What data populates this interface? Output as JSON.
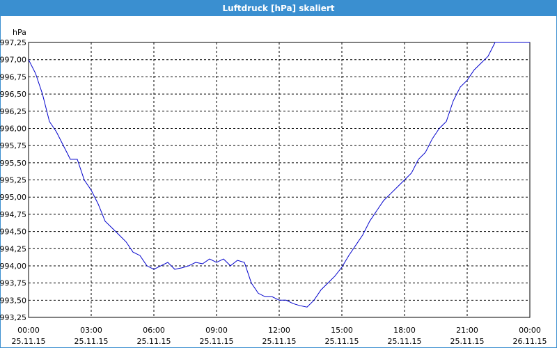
{
  "window": {
    "title": "Luftdruck [hPa] skaliert"
  },
  "chart_data": {
    "type": "line",
    "title": "Luftdruck [hPa] skaliert",
    "ylabel": "hPa",
    "xlabel": "",
    "grid": true,
    "colors": {
      "line": "#0000cc",
      "grid": "#000000",
      "background": "#ffffff",
      "title_bar": "#3a8fd0"
    },
    "ylim": [
      993.25,
      997.25
    ],
    "y_ticks": [
      "993,25",
      "993,50",
      "993,75",
      "994,00",
      "994,25",
      "994,50",
      "994,75",
      "995,00",
      "995,25",
      "995,50",
      "995,75",
      "996,00",
      "996,25",
      "996,50",
      "996,75",
      "997,00",
      "997,25"
    ],
    "xlim": [
      "2015-11-25 00:00",
      "2015-11-26 00:00"
    ],
    "x_ticks": [
      {
        "time": "00:00",
        "date": "25.11.15"
      },
      {
        "time": "03:00",
        "date": "25.11.15"
      },
      {
        "time": "06:00",
        "date": "25.11.15"
      },
      {
        "time": "09:00",
        "date": "25.11.15"
      },
      {
        "time": "12:00",
        "date": "25.11.15"
      },
      {
        "time": "15:00",
        "date": "25.11.15"
      },
      {
        "time": "18:00",
        "date": "25.11.15"
      },
      {
        "time": "21:00",
        "date": "25.11.15"
      },
      {
        "time": "00:00",
        "date": "26.11.15"
      }
    ],
    "series": [
      {
        "x": [
          "00:00",
          "00:20",
          "00:40",
          "01:00",
          "01:20",
          "01:40",
          "02:00",
          "02:20",
          "02:40",
          "03:00",
          "03:20",
          "03:40",
          "04:00",
          "04:20",
          "04:40",
          "05:00",
          "05:20",
          "05:40",
          "06:00",
          "06:20",
          "06:40",
          "07:00",
          "07:20",
          "07:40",
          "08:00",
          "08:20",
          "08:40",
          "09:00",
          "09:20",
          "09:40",
          "10:00",
          "10:20",
          "10:40",
          "11:00",
          "11:20",
          "11:40",
          "12:00",
          "12:20",
          "12:40",
          "13:00",
          "13:20",
          "13:40",
          "14:00",
          "14:20",
          "14:40",
          "15:00",
          "15:20",
          "15:40",
          "16:00",
          "16:20",
          "16:40",
          "17:00",
          "17:20",
          "17:40",
          "18:00",
          "18:20",
          "18:40",
          "19:00",
          "19:20",
          "19:40",
          "20:00",
          "20:20",
          "20:40",
          "21:00",
          "21:20",
          "21:40",
          "22:00",
          "22:20",
          "22:40",
          "23:00",
          "23:20",
          "23:40",
          "24:00"
        ],
        "y": [
          997.0,
          996.8,
          996.5,
          996.1,
          995.95,
          995.75,
          995.55,
          995.55,
          995.25,
          995.1,
          994.9,
          994.65,
          994.55,
          994.45,
          994.35,
          994.2,
          994.15,
          994.0,
          993.95,
          994.0,
          994.05,
          993.95,
          993.97,
          994.0,
          994.05,
          994.03,
          994.1,
          994.05,
          994.1,
          994.0,
          994.08,
          994.05,
          993.75,
          993.6,
          993.55,
          993.55,
          993.5,
          993.5,
          993.45,
          993.42,
          993.4,
          993.5,
          993.65,
          993.75,
          993.85,
          993.98,
          994.15,
          994.3,
          994.45,
          994.65,
          994.8,
          994.95,
          995.05,
          995.15,
          995.25,
          995.35,
          995.55,
          995.65,
          995.85,
          996.0,
          996.1,
          996.4,
          996.6,
          996.7,
          996.85,
          996.95,
          997.05,
          997.25,
          997.25,
          997.25,
          997.25,
          997.25,
          997.25
        ]
      }
    ]
  }
}
